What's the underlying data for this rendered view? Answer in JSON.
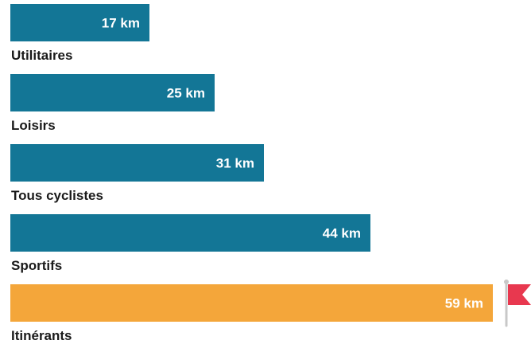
{
  "chart_data": {
    "type": "bar",
    "orientation": "horizontal",
    "title": "",
    "xlabel": "",
    "ylabel": "",
    "unit": "km",
    "categories": [
      "Utilitaires",
      "Loisirs",
      "Tous cyclistes",
      "Sportifs",
      "Itinérants"
    ],
    "values": [
      17,
      25,
      31,
      44,
      59
    ],
    "value_labels": [
      "17 km",
      "25 km",
      "31 km",
      "44 km",
      "59 km"
    ],
    "highlight_index": 4,
    "highlight_marker": "flag-icon",
    "xlim": [
      0,
      59
    ],
    "grid": false,
    "legend": "none",
    "colors": {
      "bar": "#137696",
      "highlight": "#f4a63a",
      "flag": "#e8384f",
      "pole": "#c8c8c8",
      "label": "#1a1a1a",
      "value_text": "#ffffff"
    }
  }
}
